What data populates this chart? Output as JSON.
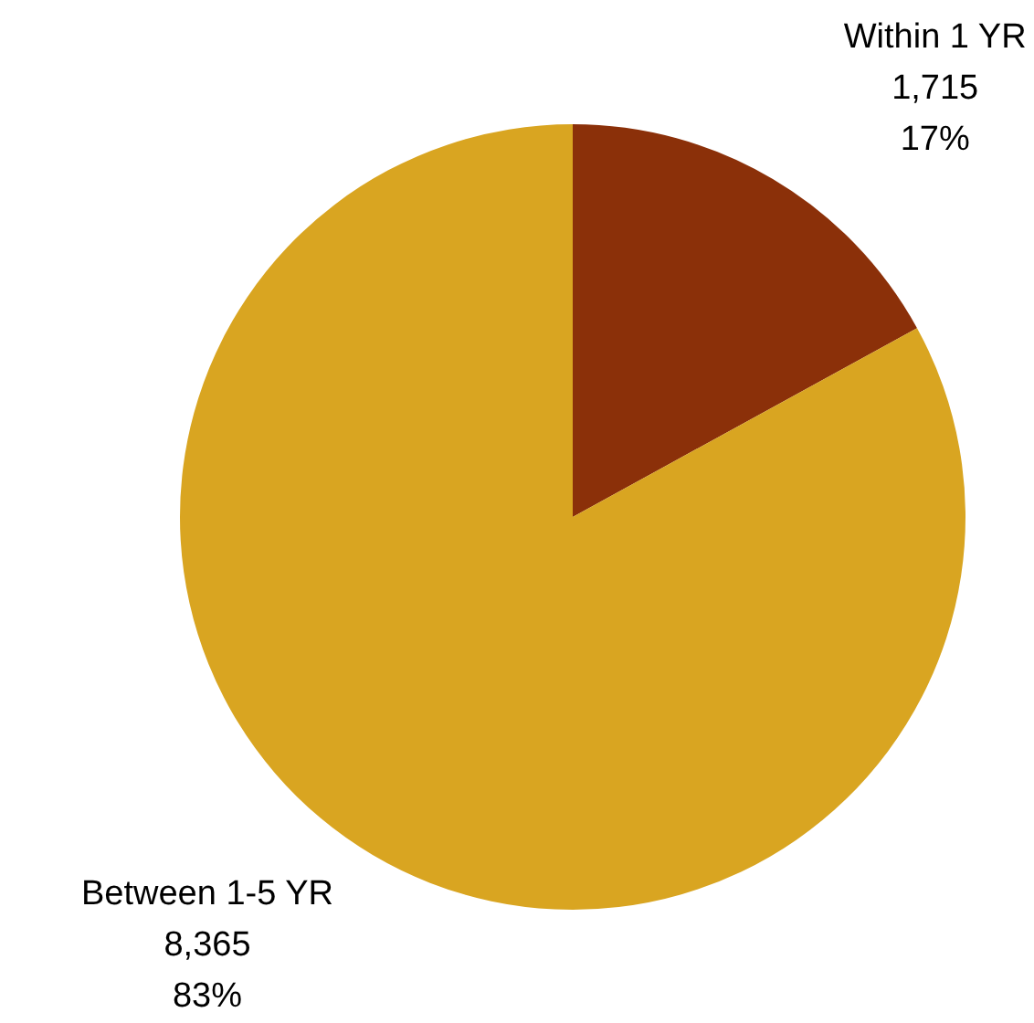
{
  "chart_data": {
    "type": "pie",
    "categories": [
      "Within 1 YR",
      "Between 1-5 YR"
    ],
    "values": [
      1715,
      8365
    ],
    "value_labels": [
      "1,715\n17%",
      "8,365\n83%"
    ],
    "colors": [
      "#8b3009",
      "#d9a521"
    ],
    "legend": false
  }
}
